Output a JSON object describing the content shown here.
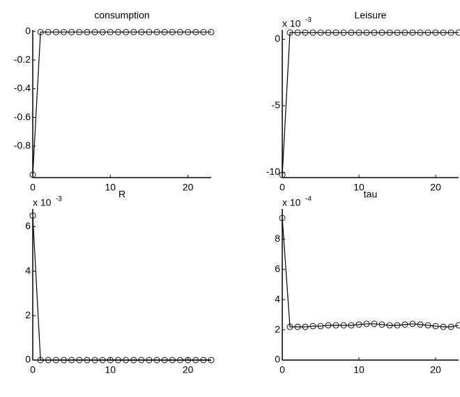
{
  "chart_data": [
    {
      "type": "line",
      "title": "consumption",
      "color": "#000000",
      "marker": "circle",
      "x": [
        0,
        1,
        2,
        3,
        4,
        5,
        6,
        7,
        8,
        9,
        10,
        11,
        12,
        13,
        14,
        15,
        16,
        17,
        18,
        19,
        20,
        21,
        22,
        23
      ],
      "values": [
        -1.0,
        -0.005,
        -0.005,
        -0.005,
        -0.005,
        -0.005,
        -0.005,
        -0.005,
        -0.005,
        -0.005,
        -0.005,
        -0.005,
        -0.005,
        -0.005,
        -0.005,
        -0.005,
        -0.005,
        -0.005,
        -0.005,
        -0.005,
        -0.005,
        -0.005,
        -0.005,
        -0.005
      ],
      "xlim": [
        0,
        23
      ],
      "ylim": [
        -1.02,
        0.01
      ],
      "xticks": [
        0,
        10,
        20
      ],
      "yticks": [
        -0.8,
        -0.6,
        -0.4,
        -0.2,
        0
      ]
    },
    {
      "type": "line",
      "title": "Leisure",
      "color": "#000000",
      "marker": "circle",
      "y_scale_base": "x 10",
      "y_scale_exp": "-3",
      "x": [
        0,
        1,
        2,
        3,
        4,
        5,
        6,
        7,
        8,
        9,
        10,
        11,
        12,
        13,
        14,
        15,
        16,
        17,
        18,
        19,
        20,
        21,
        22,
        23
      ],
      "values": [
        -10.2,
        0.5,
        0.5,
        0.5,
        0.5,
        0.5,
        0.5,
        0.5,
        0.5,
        0.5,
        0.5,
        0.5,
        0.5,
        0.5,
        0.5,
        0.5,
        0.5,
        0.5,
        0.5,
        0.5,
        0.5,
        0.5,
        0.5,
        0.5
      ],
      "xlim": [
        0,
        23
      ],
      "ylim": [
        -10.4,
        0.7
      ],
      "xticks": [
        0,
        10,
        20
      ],
      "yticks": [
        -10,
        -5,
        0
      ]
    },
    {
      "type": "line",
      "title": "R",
      "color": "#000000",
      "marker": "circle",
      "y_scale_base": "x 10",
      "y_scale_exp": "-3",
      "x": [
        0,
        1,
        2,
        3,
        4,
        5,
        6,
        7,
        8,
        9,
        10,
        11,
        12,
        13,
        14,
        15,
        16,
        17,
        18,
        19,
        20,
        21,
        22,
        23
      ],
      "values": [
        6.5,
        0,
        0,
        0,
        0,
        0,
        0,
        0,
        0,
        0,
        0,
        0,
        0,
        0,
        0,
        0,
        0,
        0,
        0,
        0,
        0,
        0,
        0,
        0
      ],
      "xlim": [
        0,
        23
      ],
      "ylim": [
        0,
        6.8
      ],
      "xticks": [
        0,
        10,
        20
      ],
      "yticks": [
        0,
        2,
        4,
        6
      ]
    },
    {
      "type": "line",
      "title": "tau",
      "color": "#000000",
      "marker": "circle",
      "y_scale_base": "x 10",
      "y_scale_exp": "-4",
      "x": [
        0,
        1,
        2,
        3,
        4,
        5,
        6,
        7,
        8,
        9,
        10,
        11,
        12,
        13,
        14,
        15,
        16,
        17,
        18,
        19,
        20,
        21,
        22,
        23
      ],
      "values": [
        9.4,
        2.2,
        2.2,
        2.2,
        2.25,
        2.25,
        2.3,
        2.3,
        2.3,
        2.3,
        2.35,
        2.4,
        2.4,
        2.35,
        2.3,
        2.3,
        2.35,
        2.4,
        2.35,
        2.3,
        2.25,
        2.2,
        2.2,
        2.3
      ],
      "xlim": [
        0,
        23
      ],
      "ylim": [
        0,
        10
      ],
      "xticks": [
        0,
        10,
        20
      ],
      "yticks": [
        0,
        2,
        4,
        6,
        8
      ]
    }
  ]
}
